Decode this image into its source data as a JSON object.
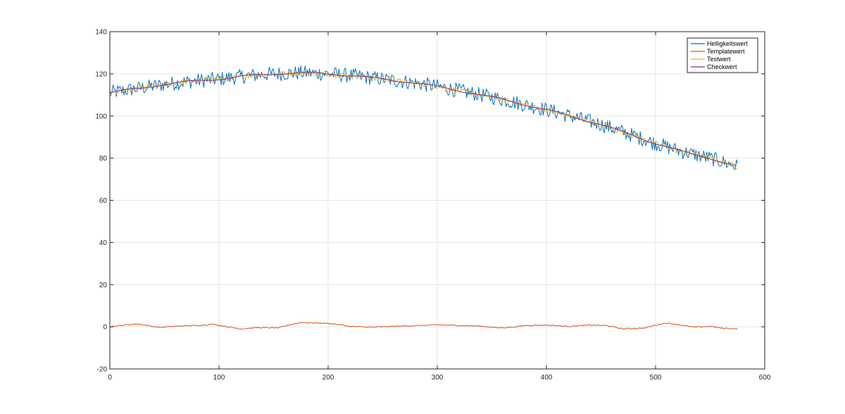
{
  "chart_data": {
    "type": "line",
    "title": "",
    "xlabel": "",
    "ylabel": "",
    "xlim": [
      0,
      600
    ],
    "ylim": [
      -20,
      140
    ],
    "xticks": [
      0,
      100,
      200,
      300,
      400,
      500,
      600
    ],
    "yticks": [
      -20,
      0,
      20,
      40,
      60,
      80,
      100,
      120,
      140
    ],
    "grid": true,
    "legend_position": "top-right",
    "x_max_sample": 575,
    "series": [
      {
        "name": "Helligkeitswert",
        "color": "#0072BD",
        "style": "noisy",
        "noise_amplitude": 3.5,
        "trend": [
          [
            0,
            111
          ],
          [
            25,
            113
          ],
          [
            50,
            115
          ],
          [
            75,
            116.5
          ],
          [
            100,
            117.5
          ],
          [
            125,
            119
          ],
          [
            150,
            120
          ],
          [
            175,
            120.5
          ],
          [
            200,
            120
          ],
          [
            225,
            119
          ],
          [
            250,
            117.5
          ],
          [
            275,
            116
          ],
          [
            300,
            114
          ],
          [
            325,
            111.5
          ],
          [
            350,
            109
          ],
          [
            375,
            106
          ],
          [
            400,
            103
          ],
          [
            425,
            99.5
          ],
          [
            450,
            96
          ],
          [
            475,
            91.5
          ],
          [
            500,
            87
          ],
          [
            525,
            83
          ],
          [
            550,
            80
          ],
          [
            575,
            76
          ]
        ]
      },
      {
        "name": "Templatewert",
        "color": "#D95319",
        "values": [
          [
            0,
            0
          ],
          [
            10,
            0.6
          ],
          [
            25,
            1.4
          ],
          [
            45,
            -0.3
          ],
          [
            65,
            0.4
          ],
          [
            80,
            0.6
          ],
          [
            95,
            1.2
          ],
          [
            110,
            -0.2
          ],
          [
            120,
            -1.0
          ],
          [
            135,
            -0.4
          ],
          [
            155,
            -0.5
          ],
          [
            165,
            1.0
          ],
          [
            175,
            2.0
          ],
          [
            190,
            1.8
          ],
          [
            205,
            1.4
          ],
          [
            220,
            0.2
          ],
          [
            240,
            -0.2
          ],
          [
            260,
            0.2
          ],
          [
            285,
            0.6
          ],
          [
            300,
            0.9
          ],
          [
            320,
            0.6
          ],
          [
            340,
            0.3
          ],
          [
            355,
            -0.5
          ],
          [
            370,
            -0.2
          ],
          [
            380,
            0.6
          ],
          [
            400,
            0.8
          ],
          [
            420,
            0.2
          ],
          [
            440,
            0.8
          ],
          [
            455,
            0.6
          ],
          [
            470,
            -1.0
          ],
          [
            490,
            -0.6
          ],
          [
            500,
            0.8
          ],
          [
            510,
            1.8
          ],
          [
            522,
            0.9
          ],
          [
            535,
            -0.2
          ],
          [
            550,
            0.2
          ],
          [
            560,
            -0.6
          ],
          [
            575,
            -1.0
          ]
        ]
      },
      {
        "name": "Testwert",
        "color": "#EDB120",
        "style": "noisy",
        "noise_amplitude": 1.2,
        "trend": [
          [
            0,
            111
          ],
          [
            25,
            113
          ],
          [
            50,
            115
          ],
          [
            75,
            116.5
          ],
          [
            100,
            117.5
          ],
          [
            125,
            119
          ],
          [
            150,
            120
          ],
          [
            175,
            120.5
          ],
          [
            200,
            120
          ],
          [
            225,
            119
          ],
          [
            250,
            117.5
          ],
          [
            275,
            116
          ],
          [
            300,
            114
          ],
          [
            325,
            111.5
          ],
          [
            350,
            109
          ],
          [
            375,
            106
          ],
          [
            400,
            103
          ],
          [
            425,
            99.5
          ],
          [
            450,
            96
          ],
          [
            475,
            91.5
          ],
          [
            500,
            87
          ],
          [
            525,
            83
          ],
          [
            550,
            80
          ],
          [
            575,
            76
          ]
        ]
      },
      {
        "name": "Checkwert",
        "color": "#7E2F8E",
        "style": "smooth",
        "trend": [
          [
            0,
            111
          ],
          [
            25,
            113
          ],
          [
            50,
            115
          ],
          [
            75,
            116.5
          ],
          [
            100,
            117.5
          ],
          [
            125,
            119
          ],
          [
            150,
            120
          ],
          [
            175,
            120.5
          ],
          [
            200,
            120
          ],
          [
            225,
            119
          ],
          [
            250,
            117.5
          ],
          [
            275,
            116
          ],
          [
            300,
            114
          ],
          [
            325,
            111.5
          ],
          [
            350,
            109
          ],
          [
            375,
            106
          ],
          [
            400,
            103
          ],
          [
            425,
            99.5
          ],
          [
            450,
            96
          ],
          [
            475,
            91.5
          ],
          [
            500,
            87
          ],
          [
            525,
            83
          ],
          [
            550,
            80
          ],
          [
            575,
            76
          ]
        ]
      }
    ]
  }
}
